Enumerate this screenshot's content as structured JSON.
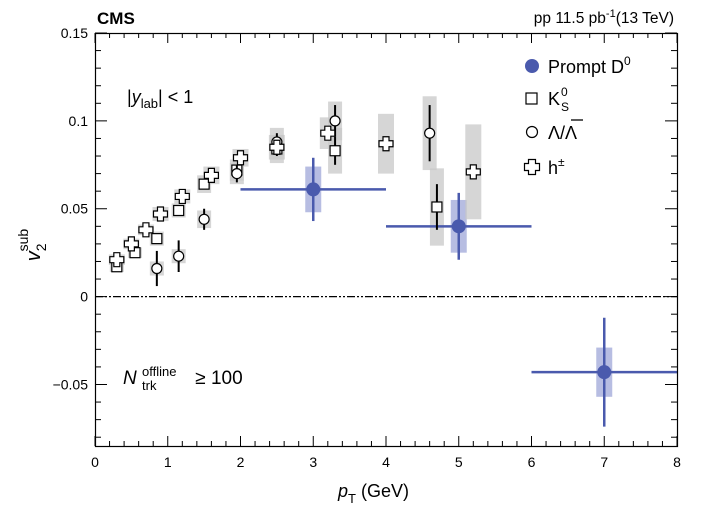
{
  "chart_data": {
    "type": "scatter",
    "experiment": "CMS",
    "dataset": "pp 11.5 pb",
    "dataset_sup": "-1",
    "energy": "(13 TeV)",
    "xlabel": {
      "main": "p",
      "sub": "T",
      "unit": " (GeV)"
    },
    "ylabel": {
      "main": "v",
      "sub": "2",
      "sup": "sub"
    },
    "xlim": [
      0,
      8
    ],
    "ylim": [
      -0.085,
      0.15
    ],
    "xticks": [
      0,
      1,
      2,
      3,
      4,
      5,
      6,
      7,
      8
    ],
    "yticks": [
      {
        "v": -0.05,
        "label": "−0.05"
      },
      {
        "v": 0,
        "label": "0"
      },
      {
        "v": 0.05,
        "label": "0.05"
      },
      {
        "v": 0.1,
        "label": "0.1"
      },
      {
        "v": 0.15,
        "label": "0.15"
      }
    ],
    "reference_line_y": 0,
    "annotations": {
      "rapidity": {
        "pre": "|",
        "var": "y",
        "sub": "lab",
        "post": "| < 1"
      },
      "multiplicity": {
        "var": "N",
        "sub": "trk",
        "sup": "offline",
        "post": " ≥ 100"
      }
    },
    "legend_position": "top-right",
    "series": [
      {
        "name": "Prompt D",
        "name_sup": "0",
        "marker": "filled-circle",
        "color": "#4a5aad",
        "syst_color": "#aab1dd",
        "points": [
          {
            "x": 3.0,
            "y": 0.061,
            "xerr": 1.0,
            "stat": 0.018,
            "syst": 0.013
          },
          {
            "x": 5.0,
            "y": 0.04,
            "xerr": 1.0,
            "stat": 0.019,
            "syst": 0.015
          },
          {
            "x": 7.0,
            "y": -0.043,
            "xerr": 1.0,
            "stat": 0.031,
            "syst": 0.014
          }
        ]
      },
      {
        "name": "K",
        "name_sub": "S",
        "name_sup": "0",
        "marker": "open-square",
        "points": [
          {
            "x": 0.3,
            "y": 0.017,
            "stat": 0.002,
            "syst": 0.003
          },
          {
            "x": 0.55,
            "y": 0.025,
            "stat": 0.002,
            "syst": 0.003
          },
          {
            "x": 0.85,
            "y": 0.033,
            "stat": 0.002,
            "syst": 0.004
          },
          {
            "x": 1.15,
            "y": 0.049,
            "stat": 0.002,
            "syst": 0.004
          },
          {
            "x": 1.5,
            "y": 0.064,
            "stat": 0.003,
            "syst": 0.005
          },
          {
            "x": 1.95,
            "y": 0.072,
            "stat": 0.003,
            "syst": 0.006
          },
          {
            "x": 2.5,
            "y": 0.084,
            "stat": 0.004,
            "syst": 0.008
          },
          {
            "x": 3.3,
            "y": 0.083,
            "stat": 0.008,
            "syst": 0.013
          },
          {
            "x": 4.7,
            "y": 0.051,
            "stat": 0.013,
            "syst": 0.022
          }
        ]
      },
      {
        "name": "Λ/Λ",
        "marker": "open-circle",
        "points": [
          {
            "x": 0.85,
            "y": 0.016,
            "stat": 0.01,
            "syst": 0.004
          },
          {
            "x": 1.15,
            "y": 0.023,
            "stat": 0.009,
            "syst": 0.004
          },
          {
            "x": 1.5,
            "y": 0.044,
            "stat": 0.006,
            "syst": 0.005
          },
          {
            "x": 1.95,
            "y": 0.07,
            "stat": 0.005,
            "syst": 0.006
          },
          {
            "x": 2.5,
            "y": 0.088,
            "stat": 0.005,
            "syst": 0.008
          },
          {
            "x": 3.3,
            "y": 0.1,
            "stat": 0.009,
            "syst": 0.011
          },
          {
            "x": 4.6,
            "y": 0.093,
            "stat": 0.016,
            "syst": 0.021
          }
        ]
      },
      {
        "name": "h",
        "name_sup": "±",
        "marker": "open-cross",
        "points": [
          {
            "x": 0.3,
            "y": 0.021,
            "stat": 0.001,
            "syst": 0.003
          },
          {
            "x": 0.5,
            "y": 0.03,
            "stat": 0.001,
            "syst": 0.003
          },
          {
            "x": 0.7,
            "y": 0.038,
            "stat": 0.001,
            "syst": 0.003
          },
          {
            "x": 0.9,
            "y": 0.047,
            "stat": 0.001,
            "syst": 0.004
          },
          {
            "x": 1.2,
            "y": 0.057,
            "stat": 0.001,
            "syst": 0.004
          },
          {
            "x": 1.6,
            "y": 0.069,
            "stat": 0.001,
            "syst": 0.005
          },
          {
            "x": 2.0,
            "y": 0.079,
            "stat": 0.001,
            "syst": 0.005
          },
          {
            "x": 2.5,
            "y": 0.085,
            "stat": 0.002,
            "syst": 0.007
          },
          {
            "x": 3.2,
            "y": 0.093,
            "stat": 0.003,
            "syst": 0.009
          },
          {
            "x": 4.0,
            "y": 0.087,
            "stat": 0.003,
            "syst": 0.017
          },
          {
            "x": 5.2,
            "y": 0.071,
            "stat": 0.004,
            "syst": 0.027
          }
        ]
      }
    ]
  }
}
